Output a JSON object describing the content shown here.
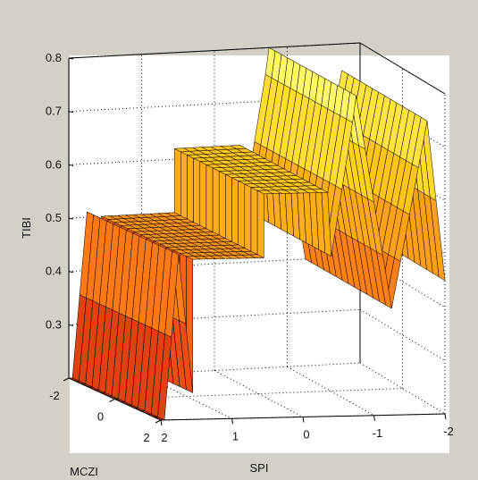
{
  "chart_data": {
    "type": "surface",
    "title": "",
    "xlabel": "SPI",
    "ylabel": "MCZI",
    "zlabel": "TIBI",
    "x_ticks": [
      "2",
      "1",
      "0",
      "-1",
      "-2"
    ],
    "y_ticks": [
      "-2",
      "0",
      "2"
    ],
    "z_ticks": [
      "0.8",
      "0.7",
      "0.6",
      "0.5",
      "0.4",
      "0.3"
    ],
    "xlim": [
      -2,
      2
    ],
    "ylim": [
      -2,
      2
    ],
    "zlim": [
      0.2,
      0.8
    ],
    "grid": true,
    "colormap": "hot",
    "surface_profile": {
      "description_axis": "SPI",
      "x": [
        2.0,
        1.95,
        1.75,
        1.55,
        1.55,
        1.0,
        0.55,
        0.55,
        0.05,
        -0.35,
        -0.4,
        -0.7,
        -0.75,
        -1.25,
        -1.75,
        -2.0
      ],
      "z": [
        0.2,
        0.2,
        0.51,
        0.25,
        0.5,
        0.5,
        0.5,
        0.62,
        0.62,
        0.62,
        0.5,
        0.75,
        0.8,
        0.4,
        0.75,
        0.45
      ]
    }
  },
  "colors": {
    "background": "#d4d0c8",
    "axes_face": "#ffffff",
    "axis_line": "#000000",
    "grid": "#000000"
  }
}
